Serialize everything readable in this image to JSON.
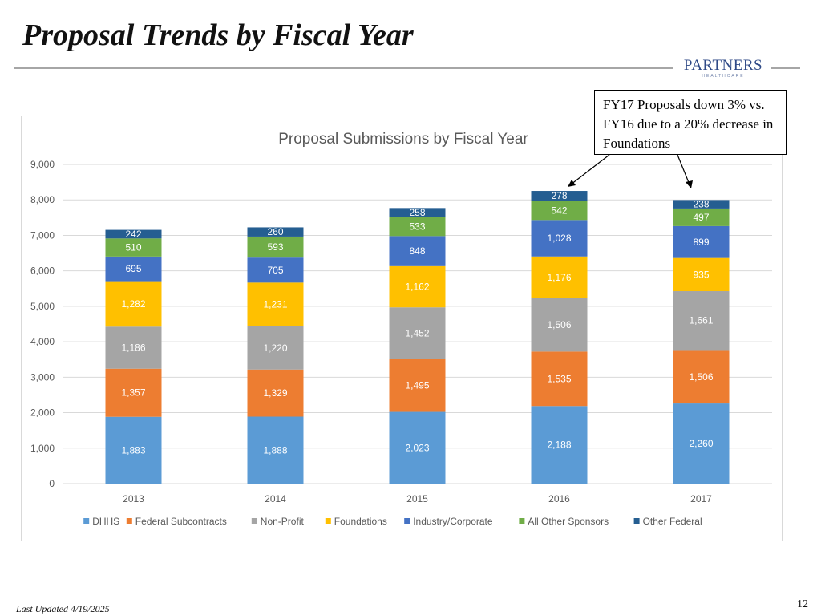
{
  "slide": {
    "title": "Proposal Trends by Fiscal Year",
    "footer": "Last Updated 4/19/2025",
    "page_number": "12",
    "logo_text": "PARTNERS",
    "logo_sub": "HEALTHCARE"
  },
  "callout": {
    "text": "FY17 Proposals down 3% vs. FY16 due to a 20% decrease in Foundations"
  },
  "chart_data": {
    "type": "bar",
    "stacked": true,
    "title": "Proposal Submissions by Fiscal Year",
    "xlabel": "",
    "ylabel": "",
    "ylim": [
      0,
      9000
    ],
    "yticks": [
      0,
      1000,
      2000,
      3000,
      4000,
      5000,
      6000,
      7000,
      8000,
      9000
    ],
    "ytick_labels": [
      "0",
      "1,000",
      "2,000",
      "3,000",
      "4,000",
      "5,000",
      "6,000",
      "7,000",
      "8,000",
      "9,000"
    ],
    "grid": true,
    "legend_position": "bottom",
    "categories": [
      "2013",
      "2014",
      "2015",
      "2016",
      "2017"
    ],
    "series": [
      {
        "name": "DHHS",
        "color": "#5b9bd5",
        "values": [
          1883,
          1888,
          2023,
          2188,
          2260
        ],
        "labels": [
          "1,883",
          "1,888",
          "2,023",
          "2,188",
          "2,260"
        ]
      },
      {
        "name": "Federal Subcontracts",
        "color": "#ed7d31",
        "values": [
          1357,
          1329,
          1495,
          1535,
          1506
        ],
        "labels": [
          "1,357",
          "1,329",
          "1,495",
          "1,535",
          "1,506"
        ]
      },
      {
        "name": "Non-Profit",
        "color": "#a5a5a5",
        "values": [
          1186,
          1220,
          1452,
          1506,
          1661
        ],
        "labels": [
          "1,186",
          "1,220",
          "1,452",
          "1,506",
          "1,661"
        ]
      },
      {
        "name": "Foundations",
        "color": "#ffc000",
        "values": [
          1282,
          1231,
          1162,
          1176,
          935
        ],
        "labels": [
          "1,282",
          "1,231",
          "1,162",
          "1,176",
          "935"
        ]
      },
      {
        "name": "Industry/Corporate",
        "color": "#4472c4",
        "values": [
          695,
          705,
          848,
          1028,
          899
        ],
        "labels": [
          "695",
          "705",
          "848",
          "1,028",
          "899"
        ]
      },
      {
        "name": "All Other Sponsors",
        "color": "#70ad47",
        "values": [
          510,
          593,
          533,
          542,
          497
        ],
        "labels": [
          "510",
          "593",
          "533",
          "542",
          "497"
        ]
      },
      {
        "name": "Other Federal",
        "color": "#255e91",
        "values": [
          242,
          260,
          258,
          278,
          238
        ],
        "labels": [
          "242",
          "260",
          "258",
          "278",
          "238"
        ]
      }
    ]
  }
}
